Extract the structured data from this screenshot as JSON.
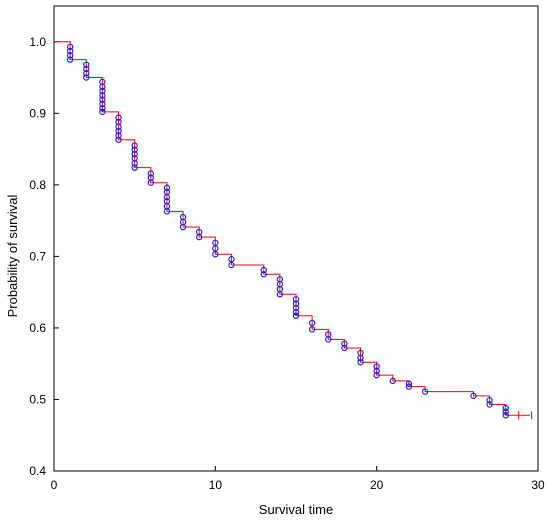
{
  "chart_data": {
    "type": "line",
    "subtype": "kaplan-meier survival curve",
    "xlabel": "Survival time",
    "ylabel": "Probability of survival",
    "xlim": [
      0,
      30
    ],
    "ylim": [
      0.4,
      1.05
    ],
    "xticks": [
      0,
      10,
      20,
      30
    ],
    "yticks": [
      0.4,
      0.5,
      0.6,
      0.7,
      0.8,
      0.9,
      1.0
    ],
    "xtick_labels": [
      "0",
      "10",
      "20",
      "30"
    ],
    "ytick_labels": [
      "0.4",
      "0.5",
      "0.6",
      "0.7",
      "0.8",
      "0.9",
      "1.0"
    ],
    "grid": false,
    "legend": "none",
    "colors": {
      "step_line": "#ff0000",
      "markers": "#2222cc",
      "axes": "#000000"
    },
    "steps": [
      {
        "x": 0,
        "y": 1.0
      },
      {
        "x": 1,
        "y": 0.975
      },
      {
        "x": 2,
        "y": 0.95
      },
      {
        "x": 3,
        "y": 0.902
      },
      {
        "x": 4,
        "y": 0.863
      },
      {
        "x": 5,
        "y": 0.824
      },
      {
        "x": 6,
        "y": 0.803
      },
      {
        "x": 7,
        "y": 0.763
      },
      {
        "x": 8,
        "y": 0.741
      },
      {
        "x": 9,
        "y": 0.727
      },
      {
        "x": 10,
        "y": 0.703
      },
      {
        "x": 11,
        "y": 0.688
      },
      {
        "x": 13,
        "y": 0.675
      },
      {
        "x": 14,
        "y": 0.647
      },
      {
        "x": 15,
        "y": 0.617
      },
      {
        "x": 16,
        "y": 0.598
      },
      {
        "x": 17,
        "y": 0.584
      },
      {
        "x": 18,
        "y": 0.572
      },
      {
        "x": 19,
        "y": 0.552
      },
      {
        "x": 20,
        "y": 0.534
      },
      {
        "x": 21,
        "y": 0.526
      },
      {
        "x": 22,
        "y": 0.518
      },
      {
        "x": 23,
        "y": 0.511
      },
      {
        "x": 26,
        "y": 0.505
      },
      {
        "x": 27,
        "y": 0.493
      },
      {
        "x": 28,
        "y": 0.478
      },
      {
        "x": 29.5,
        "y": 0.478
      }
    ],
    "censor_marks": [
      {
        "x": 28.8,
        "y": 0.478
      },
      {
        "x": 29.6,
        "y": 0.478
      }
    ],
    "event_markers": [
      {
        "x": 1,
        "y": [
          0.993,
          0.987,
          0.981,
          0.975
        ]
      },
      {
        "x": 2,
        "y": [
          0.968,
          0.962,
          0.956,
          0.95
        ]
      },
      {
        "x": 3,
        "y": [
          0.944,
          0.937,
          0.931,
          0.925,
          0.919,
          0.913,
          0.907,
          0.902
        ]
      },
      {
        "x": 4,
        "y": [
          0.894,
          0.888,
          0.881,
          0.875,
          0.869,
          0.863
        ]
      },
      {
        "x": 5,
        "y": [
          0.855,
          0.849,
          0.843,
          0.837,
          0.83,
          0.824
        ]
      },
      {
        "x": 6,
        "y": [
          0.816,
          0.81,
          0.803
        ]
      },
      {
        "x": 7,
        "y": [
          0.796,
          0.79,
          0.783,
          0.777,
          0.77,
          0.763
        ]
      },
      {
        "x": 8,
        "y": [
          0.755,
          0.748,
          0.741
        ]
      },
      {
        "x": 9,
        "y": [
          0.734,
          0.727
        ]
      },
      {
        "x": 10,
        "y": [
          0.719,
          0.711,
          0.703
        ]
      },
      {
        "x": 11,
        "y": [
          0.696,
          0.688
        ]
      },
      {
        "x": 13,
        "y": [
          0.681,
          0.675
        ]
      },
      {
        "x": 14,
        "y": [
          0.668,
          0.661,
          0.654,
          0.647
        ]
      },
      {
        "x": 15,
        "y": [
          0.64,
          0.634,
          0.628,
          0.622,
          0.617
        ]
      },
      {
        "x": 16,
        "y": [
          0.607,
          0.598
        ]
      },
      {
        "x": 17,
        "y": [
          0.591,
          0.584
        ]
      },
      {
        "x": 18,
        "y": [
          0.578,
          0.572
        ]
      },
      {
        "x": 19,
        "y": [
          0.565,
          0.558,
          0.552
        ]
      },
      {
        "x": 20,
        "y": [
          0.546,
          0.54,
          0.534
        ]
      },
      {
        "x": 21,
        "y": [
          0.526
        ]
      },
      {
        "x": 22,
        "y": [
          0.522,
          0.518
        ]
      },
      {
        "x": 23,
        "y": [
          0.511
        ]
      },
      {
        "x": 26,
        "y": [
          0.505
        ]
      },
      {
        "x": 27,
        "y": [
          0.499,
          0.493
        ]
      },
      {
        "x": 28,
        "y": [
          0.488,
          0.483,
          0.478
        ]
      }
    ]
  }
}
